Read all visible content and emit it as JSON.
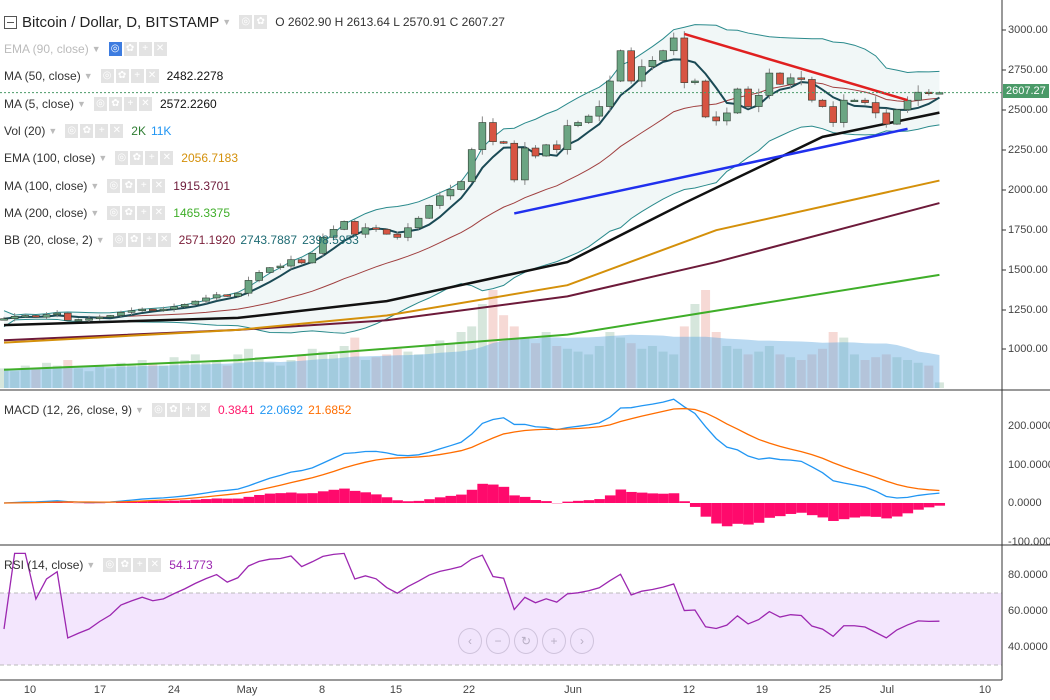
{
  "header": {
    "symbol": "Bitcoin / Dollar, D, BITSTAMP",
    "ohlc": "O 2602.90 H 2613.64 L 2570.91 C 2607.27"
  },
  "legend": [
    {
      "name": "EMA (90, close)",
      "values": [],
      "colors": [],
      "hidden": true
    },
    {
      "name": "MA (50, close)",
      "values": [
        "2482.2278"
      ],
      "colors": [
        "#111111"
      ]
    },
    {
      "name": "MA (5, close)",
      "values": [
        "2572.2260"
      ],
      "colors": [
        "#111111"
      ]
    },
    {
      "name": "Vol (20)",
      "values": [
        "2K",
        "11K"
      ],
      "colors": [
        "#2e7d32",
        "#2196f3"
      ]
    },
    {
      "name": "EMA (100, close)",
      "values": [
        "2056.7183"
      ],
      "colors": [
        "#d4900a"
      ]
    },
    {
      "name": "MA (100, close)",
      "values": [
        "1915.3701"
      ],
      "colors": [
        "#6d1a3a"
      ]
    },
    {
      "name": "MA (200, close)",
      "values": [
        "1465.3375"
      ],
      "colors": [
        "#3fae29"
      ]
    },
    {
      "name": "BB (20, close, 2)",
      "values": [
        "2571.1920",
        "2743.7887",
        "2398.5953"
      ],
      "colors": [
        "#7b1f3a",
        "#1e6b73",
        "#1e6b73"
      ]
    }
  ],
  "macd_legend": {
    "name": "MACD (12, 26, close, 9)",
    "values": [
      "0.3841",
      "22.0692",
      "21.6852"
    ],
    "colors": [
      "#ff1a6c",
      "#2196f3",
      "#ff6d00"
    ]
  },
  "rsi_legend": {
    "name": "RSI (14, close)",
    "values": [
      "54.1773"
    ],
    "colors": [
      "#9c27b0"
    ]
  },
  "last_price": "2607.27",
  "price_axis": [
    "3000.00",
    "2750.00",
    "2500.00",
    "2250.00",
    "2000.00",
    "1750.00",
    "1500.00",
    "1250.00",
    "1000.00"
  ],
  "macd_axis": [
    "200.0000",
    "100.0000",
    "0.0000",
    "-100.0000"
  ],
  "rsi_axis": [
    "80.0000",
    "60.0000",
    "40.0000"
  ],
  "time_axis": [
    "10",
    "17",
    "24",
    "May",
    "8",
    "15",
    "22",
    "Jun",
    "12",
    "19",
    "25",
    "Jul",
    "10"
  ],
  "nav_buttons": [
    "‹",
    "−",
    "↻",
    "+",
    "›"
  ],
  "colors": {
    "up": "#6ba583",
    "down": "#d75442",
    "bb_fill": "#eef6f6",
    "rsi_band": "#f3e6fd",
    "price_line": "#4a9a68"
  },
  "chart_data": {
    "type": "candlestick",
    "start_date": "2017-04-09",
    "interval": "1D",
    "close": [
      1190,
      1205,
      1210,
      1200,
      1215,
      1225,
      1180,
      1185,
      1190,
      1200,
      1210,
      1230,
      1240,
      1250,
      1245,
      1250,
      1265,
      1280,
      1300,
      1320,
      1340,
      1330,
      1350,
      1430,
      1480,
      1510,
      1520,
      1560,
      1540,
      1600,
      1700,
      1750,
      1800,
      1720,
      1760,
      1750,
      1720,
      1700,
      1760,
      1820,
      1900,
      1960,
      2000,
      2050,
      2250,
      2420,
      2300,
      2290,
      2060,
      2260,
      2210,
      2280,
      2250,
      2400,
      2420,
      2460,
      2520,
      2680,
      2870,
      2680,
      2770,
      2810,
      2870,
      2950,
      2670,
      2680,
      2455,
      2430,
      2480,
      2630,
      2520,
      2590,
      2730,
      2660,
      2700,
      2690,
      2560,
      2520,
      2420,
      2560,
      2560,
      2545,
      2480,
      2410,
      2500,
      2560,
      2610,
      2605,
      2607.27
    ],
    "volume_k": [
      7,
      6,
      8,
      7,
      9,
      8,
      10,
      7,
      6,
      8,
      7,
      9,
      8,
      10,
      9,
      8,
      11,
      10,
      12,
      9,
      10,
      8,
      12,
      14,
      11,
      9,
      8,
      10,
      12,
      14,
      13,
      12,
      15,
      18,
      10,
      11,
      12,
      14,
      13,
      12,
      15,
      17,
      16,
      20,
      22,
      30,
      35,
      26,
      22,
      18,
      16,
      20,
      15,
      14,
      13,
      12,
      15,
      20,
      18,
      16,
      14,
      15,
      13,
      12,
      22,
      30,
      35,
      20,
      15,
      14,
      12,
      13,
      15,
      12,
      11,
      10,
      12,
      14,
      20,
      18,
      12,
      10,
      11,
      12,
      11,
      10,
      9,
      8,
      2
    ],
    "overlays": {
      "ma50": {
        "dates": [
          "2017-04-09",
          "2017-05-01",
          "2017-05-15",
          "2017-06-01",
          "2017-06-12",
          "2017-06-25",
          "2017-07-06"
        ],
        "values": [
          1150,
          1195,
          1300,
          1545,
          1915,
          2330,
          2482
        ]
      },
      "ema100": {
        "dates": [
          "2017-04-09",
          "2017-05-01",
          "2017-05-15",
          "2017-06-01",
          "2017-06-15",
          "2017-07-06"
        ],
        "values": [
          1040,
          1120,
          1210,
          1400,
          1745,
          2056
        ]
      },
      "ma100": {
        "dates": [
          "2017-04-09",
          "2017-05-01",
          "2017-05-15",
          "2017-06-01",
          "2017-06-15",
          "2017-07-06"
        ],
        "values": [
          1055,
          1120,
          1180,
          1330,
          1545,
          1915
        ]
      },
      "ma200": {
        "dates": [
          "2017-04-09",
          "2017-05-01",
          "2017-06-01",
          "2017-07-06"
        ],
        "values": [
          870,
          930,
          1090,
          1465
        ]
      }
    },
    "trendlines": [
      {
        "color": "#e02020",
        "from": [
          "2017-06-12",
          2975
        ],
        "to": [
          "2017-07-03",
          2560
        ]
      },
      {
        "color": "#2030ee",
        "from": [
          "2017-05-27",
          1850
        ],
        "to": [
          "2017-07-03",
          2380
        ]
      }
    ],
    "price_range": [
      800,
      3150
    ],
    "macd_range": [
      -100,
      280
    ],
    "rsi_range": [
      25,
      95
    ],
    "rsi_band": [
      30,
      70
    ]
  }
}
